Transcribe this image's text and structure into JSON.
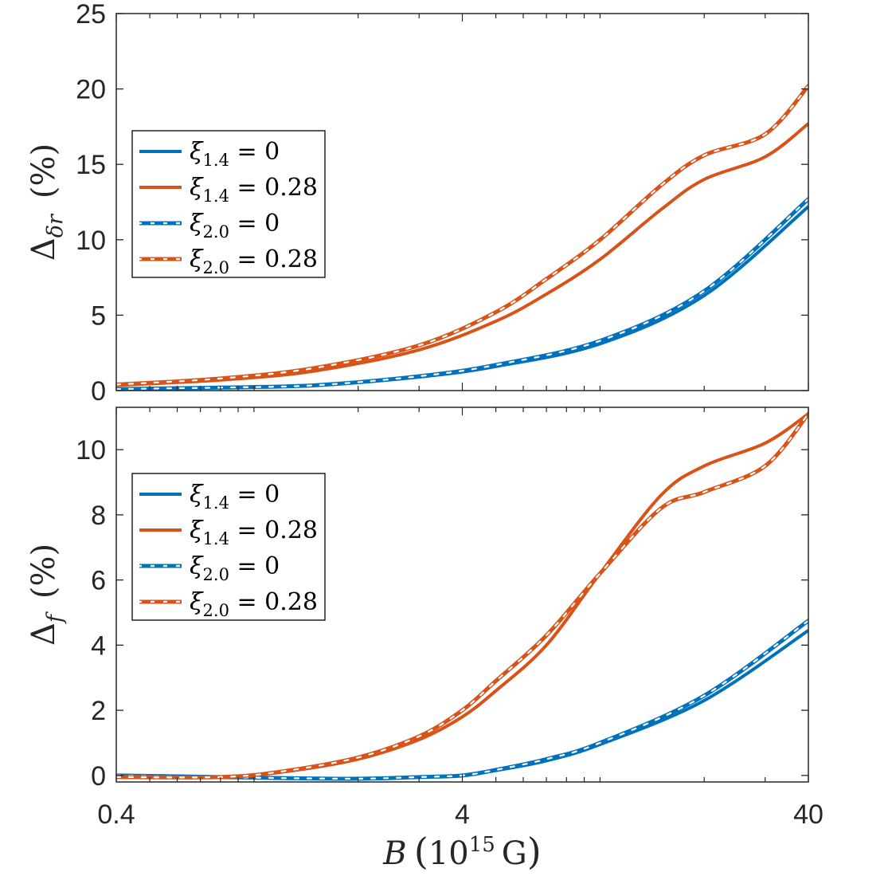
{
  "chart_data": [
    {
      "type": "line",
      "panel": "top",
      "ylabel": "Δ_δr (%)",
      "ylabel_main": "Δ",
      "ylabel_sub": "δr",
      "ylabel_unit": "(%)",
      "xscale": "log",
      "xlim": [
        0.4,
        40
      ],
      "ylim": [
        0,
        25
      ],
      "yticks": [
        0,
        5,
        10,
        15,
        20,
        25
      ],
      "ytick_labels": [
        "0",
        "5",
        "10",
        "15",
        "20",
        "25"
      ],
      "legend_position": "middle-left",
      "series": [
        {
          "name": "ξ1.4 = 0",
          "sym": "ξ",
          "sub": "1.4",
          "eq": " = 0",
          "color": "#0072BD",
          "style": "solid",
          "x": [
            0.4,
            0.8,
            1.5,
            3,
            5,
            10,
            20,
            40
          ],
          "y": [
            0.1,
            0.2,
            0.35,
            0.9,
            1.6,
            3.1,
            6.3,
            12.2
          ]
        },
        {
          "name": "ξ1.4 = 0.28",
          "sym": "ξ",
          "sub": "1.4",
          "eq": " = 0.28",
          "color": "#D95319",
          "style": "solid",
          "x": [
            0.4,
            0.8,
            1.5,
            3,
            5,
            7,
            10,
            15,
            20,
            30,
            40
          ],
          "y": [
            0.35,
            0.7,
            1.3,
            2.7,
            4.6,
            6.4,
            8.7,
            12.0,
            14.0,
            15.5,
            17.7
          ]
        },
        {
          "name": "ξ2.0 = 0",
          "sym": "ξ",
          "sub": "2.0",
          "eq": " = 0",
          "color": "#0072BD",
          "style": "dashed",
          "x": [
            0.4,
            0.8,
            1.5,
            3,
            5,
            10,
            20,
            40
          ],
          "y": [
            0.1,
            0.2,
            0.35,
            0.95,
            1.7,
            3.3,
            6.6,
            12.7
          ]
        },
        {
          "name": "ξ2.0 = 0.28",
          "sym": "ξ",
          "sub": "2.0",
          "eq": " = 0.28",
          "color": "#D95319",
          "style": "dashed",
          "x": [
            0.4,
            0.8,
            1.5,
            3,
            5,
            7,
            10,
            15,
            20,
            30,
            40
          ],
          "y": [
            0.4,
            0.8,
            1.5,
            3.0,
            5.2,
            7.4,
            10.0,
            13.6,
            15.6,
            17.0,
            20.2
          ]
        }
      ]
    },
    {
      "type": "line",
      "panel": "bottom",
      "xlabel": "B (10^15 G)",
      "xlabel_var": "B",
      "xlabel_base": "10",
      "xlabel_exp": "15",
      "xlabel_unit": "G",
      "ylabel": "Δ_f (%)",
      "ylabel_main": "Δ",
      "ylabel_sub": "f",
      "ylabel_unit": "(%)",
      "xscale": "log",
      "xlim": [
        0.4,
        40
      ],
      "ylim": [
        -0.2,
        11.3
      ],
      "xticks": [
        0.4,
        4,
        40
      ],
      "xtick_labels": [
        "0.4",
        "4",
        "40"
      ],
      "yticks": [
        0,
        2,
        4,
        6,
        8,
        10
      ],
      "ytick_labels": [
        "0",
        "2",
        "4",
        "6",
        "8",
        "10"
      ],
      "legend_position": "upper-left",
      "series": [
        {
          "name": "ξ1.4 = 0",
          "sym": "ξ",
          "sub": "1.4",
          "eq": " = 0",
          "color": "#0072BD",
          "style": "solid",
          "x": [
            0.4,
            0.8,
            1.2,
            2,
            3,
            4,
            5,
            7,
            10,
            20,
            40
          ],
          "y": [
            0.0,
            -0.05,
            -0.08,
            -0.1,
            -0.05,
            0.0,
            0.15,
            0.45,
            0.95,
            2.3,
            4.45
          ]
        },
        {
          "name": "ξ1.4 = 0.28",
          "sym": "ξ",
          "sub": "1.4",
          "eq": " = 0.28",
          "color": "#D95319",
          "style": "solid",
          "x": [
            0.4,
            0.8,
            1.2,
            2,
            3,
            4,
            5,
            7,
            10,
            15,
            20,
            30,
            40
          ],
          "y": [
            -0.05,
            -0.05,
            0.1,
            0.5,
            1.1,
            1.8,
            2.6,
            4.0,
            6.2,
            8.6,
            9.5,
            10.2,
            11.1
          ]
        },
        {
          "name": "ξ2.0 = 0",
          "sym": "ξ",
          "sub": "2.0",
          "eq": " = 0",
          "color": "#0072BD",
          "style": "dashed",
          "x": [
            0.4,
            0.8,
            1.2,
            2,
            3,
            4,
            5,
            7,
            10,
            20,
            40
          ],
          "y": [
            0.0,
            -0.05,
            -0.08,
            -0.1,
            -0.05,
            0.0,
            0.17,
            0.5,
            1.0,
            2.45,
            4.75
          ]
        },
        {
          "name": "ξ2.0 = 0.28",
          "sym": "ξ",
          "sub": "2.0",
          "eq": " = 0.28",
          "color": "#D95319",
          "style": "dashed",
          "x": [
            0.4,
            0.8,
            1.2,
            2,
            3,
            4,
            5,
            7,
            10,
            15,
            20,
            30,
            40
          ],
          "y": [
            -0.05,
            -0.05,
            0.12,
            0.55,
            1.2,
            2.0,
            2.9,
            4.3,
            6.2,
            8.2,
            8.7,
            9.5,
            11.1
          ]
        }
      ]
    }
  ]
}
